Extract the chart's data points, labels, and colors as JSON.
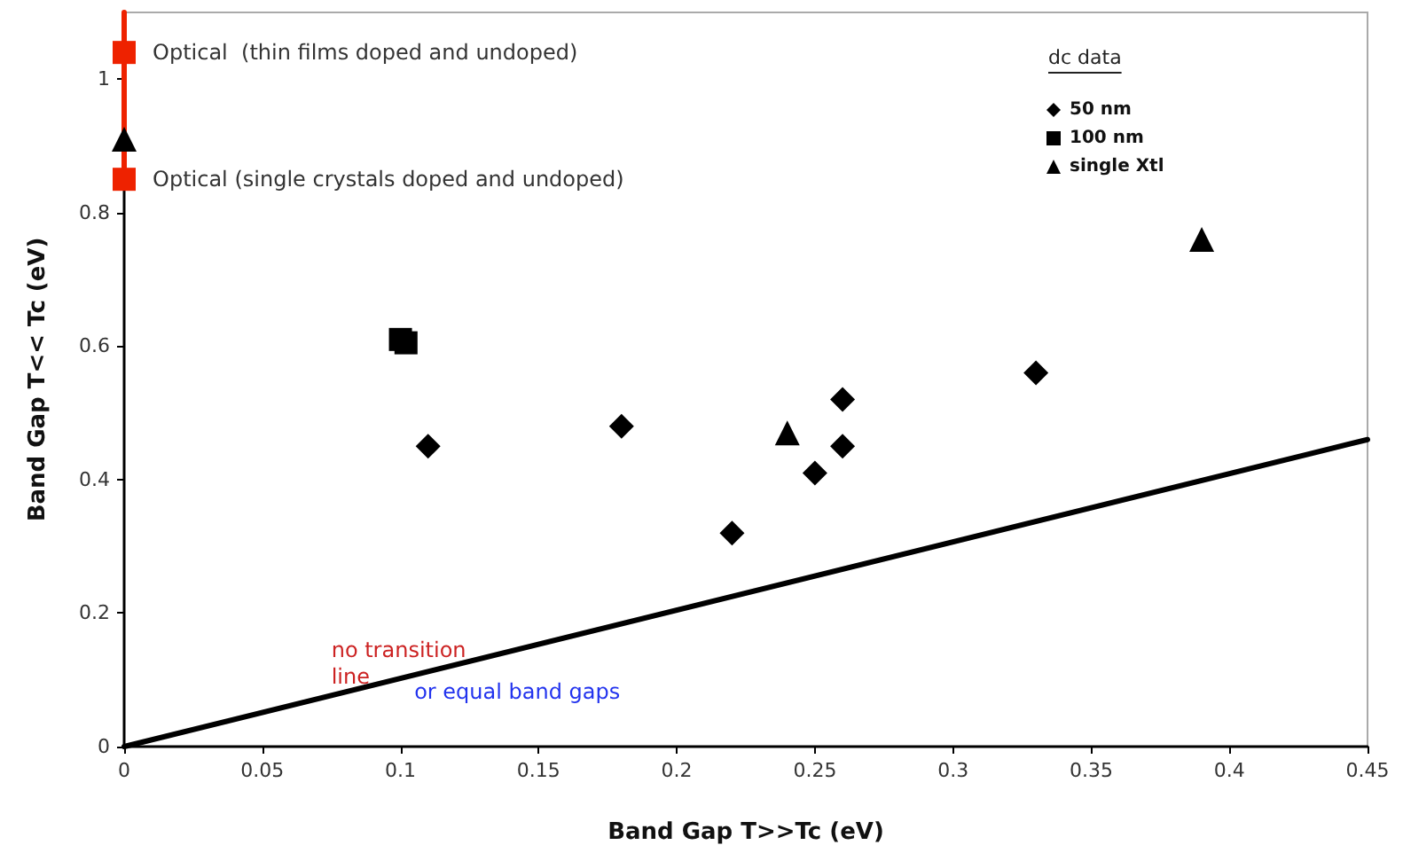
{
  "chart_data": {
    "type": "scatter",
    "xlabel": "Band Gap T>>Tc (eV)",
    "ylabel": "Band Gap T<< Tc (eV)",
    "legend_title": "dc data",
    "xlim": [
      0,
      0.45
    ],
    "ylim": [
      0,
      1.1
    ],
    "xticks": [
      0,
      0.05,
      0.1,
      0.15,
      0.2,
      0.25,
      0.3,
      0.35,
      0.4,
      0.45
    ],
    "yticks": [
      0,
      0.2,
      0.4,
      0.6,
      0.8,
      1
    ],
    "grid": false,
    "legend": "top right",
    "series": [
      {
        "name": "50 nm",
        "color": "#000000",
        "marker": "diamond",
        "x": [
          0.11,
          0.18,
          0.22,
          0.25,
          0.26,
          0.26,
          0.33
        ],
        "values": [
          0.45,
          0.48,
          0.32,
          0.41,
          0.45,
          0.52,
          0.56
        ]
      },
      {
        "name": "100 nm",
        "color": "#000000",
        "marker": "square",
        "x": [
          0.1,
          0.102
        ],
        "values": [
          0.61,
          0.605
        ]
      },
      {
        "name": "single Xtl",
        "color": "#000000",
        "marker": "triangle",
        "x": [
          0.24,
          0.39,
          0
        ],
        "values": [
          0.47,
          0.76,
          0.91
        ]
      },
      {
        "type": "line",
        "color": "#ee2200",
        "marker": "none",
        "x": [
          0,
          0
        ],
        "values": [
          1.1,
          0.85
        ]
      },
      {
        "color": "#ee2200",
        "marker": "square",
        "x": [
          0,
          0
        ],
        "values": [
          1.04,
          0.85
        ]
      },
      {
        "type": "line",
        "color": "#000000",
        "marker": "none",
        "x": [
          0,
          0.45
        ],
        "values": [
          0,
          0.46
        ]
      }
    ],
    "annotations": [
      {
        "text": "Optical  (thin films doped and undoped)",
        "x": 0,
        "y": 1.04
      },
      {
        "text": "Optical (single crystals doped and undoped)",
        "x": 0,
        "y": 0.85
      },
      "no transition\nline",
      "or equal band gaps"
    ]
  }
}
